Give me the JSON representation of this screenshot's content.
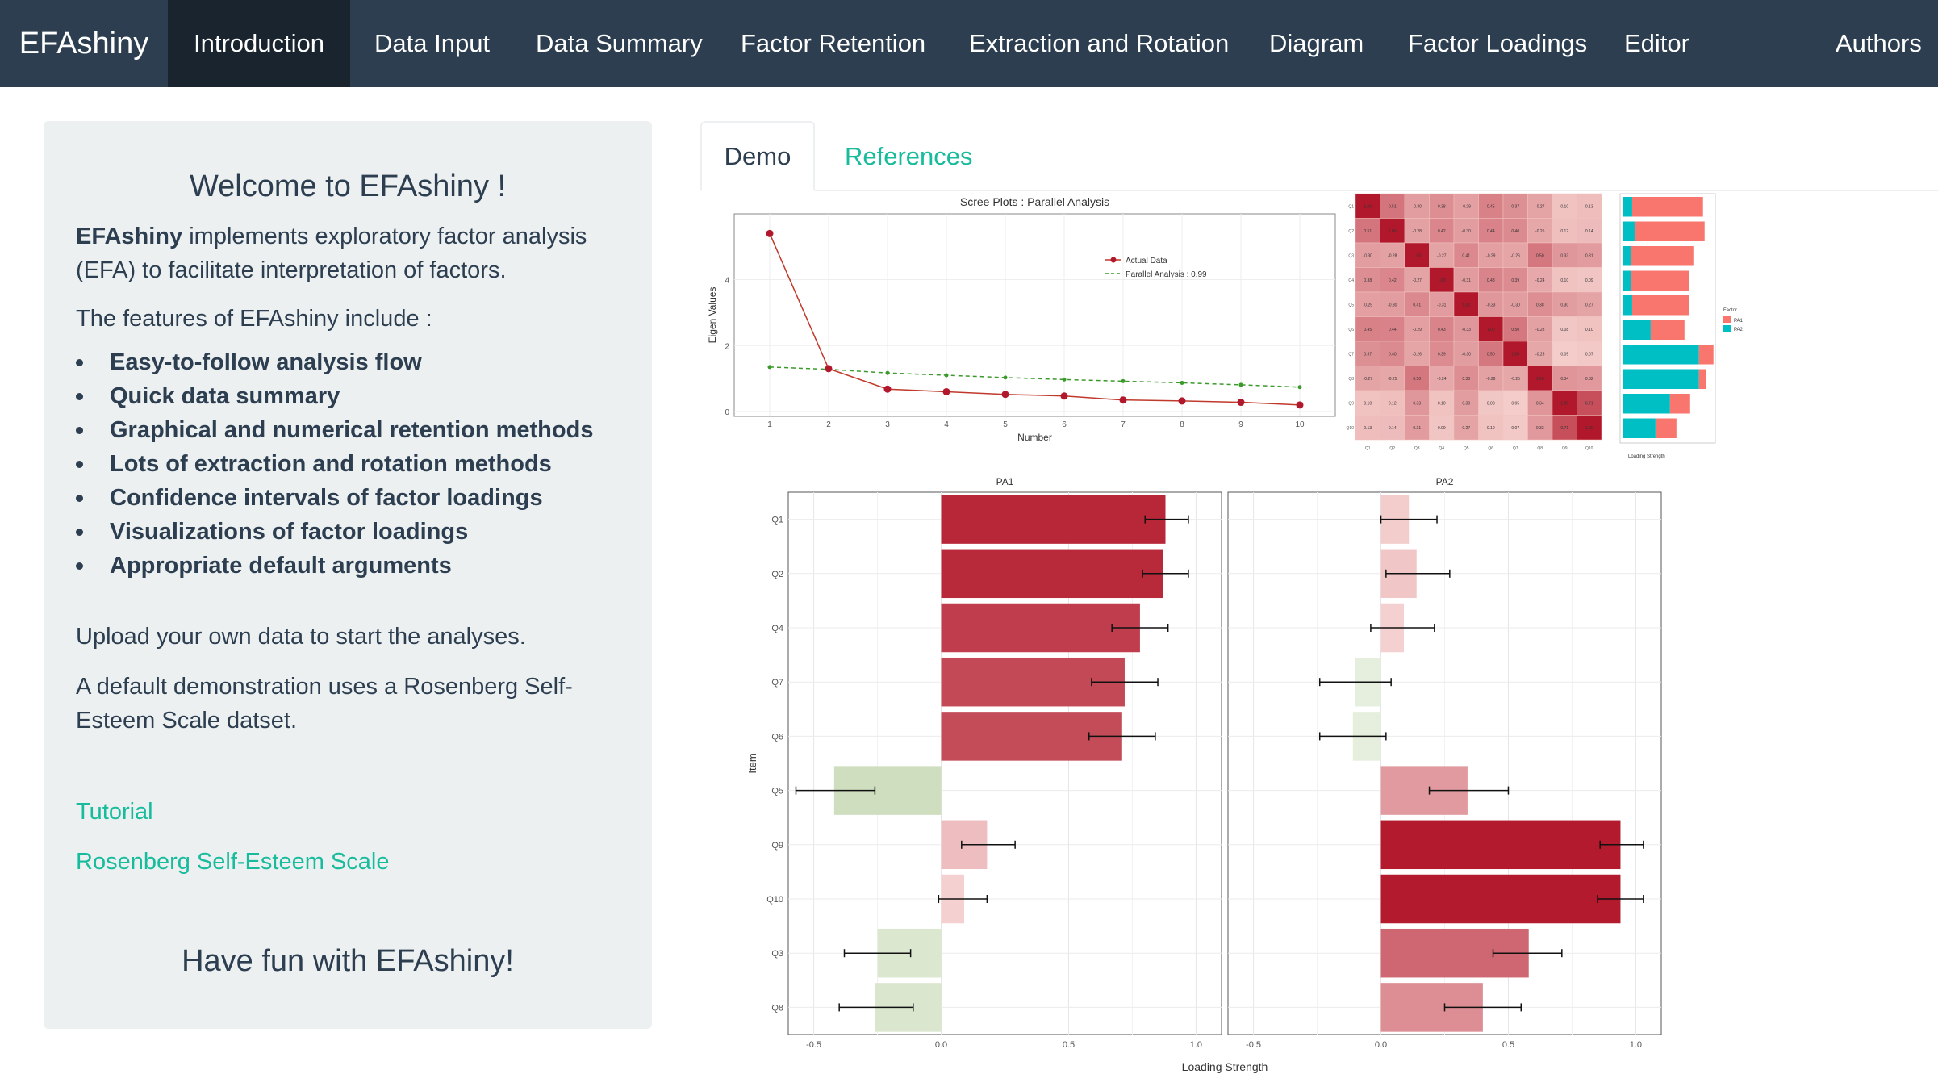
{
  "navbar": {
    "brand": "EFAshiny",
    "items": [
      "Introduction",
      "Data Input",
      "Data Summary",
      "Factor Retention",
      "Extraction and Rotation",
      "Diagram",
      "Factor Loadings",
      "Editor"
    ],
    "right_item": "Authors",
    "active": "Introduction"
  },
  "sidebar": {
    "title": "Welcome to EFAshiny !",
    "intro_bold": "EFAshiny",
    "intro_rest": " implements exploratory factor analysis (EFA) to facilitate interpretation of factors.",
    "features_lead": "The features of EFAshiny include :",
    "features": [
      "Easy-to-follow analysis flow",
      "Quick data summary",
      "Graphical and numerical retention methods",
      "Lots of extraction and rotation methods",
      "Confidence intervals of factor loadings",
      "Visualizations of factor loadings",
      "Appropriate default arguments"
    ],
    "upload_text": "Upload your own data to start the analyses.",
    "demo_text": "A default demonstration uses a Rosenberg Self-Esteem Scale datset.",
    "link_tutorial": "Tutorial",
    "link_rses": "Rosenberg Self-Esteem Scale",
    "closing": "Have fun with EFAshiny!"
  },
  "tabs": {
    "demo": "Demo",
    "references": "References"
  },
  "colors": {
    "navbar": "#2c3e50",
    "nav_active": "#1a242f",
    "accent": "#18bc9c",
    "sidebar": "#ecf0f1",
    "pos_bar": "#b2182b",
    "neg_bar": "#a6c48a",
    "pa1": "#f8766d",
    "pa2": "#00bfc4"
  },
  "chart_data": [
    {
      "type": "line",
      "title": "Scree Plots : Parallel Analysis",
      "xlabel": "Number",
      "ylabel": "Eigen Values",
      "x": [
        1,
        2,
        3,
        4,
        5,
        6,
        7,
        8,
        9,
        10
      ],
      "xticks": [
        "1",
        "2",
        "3",
        "4",
        "5",
        "6",
        "7",
        "8",
        "9",
        "10"
      ],
      "yticks": [
        "0",
        "2",
        "4"
      ],
      "ylim": [
        0,
        5.8
      ],
      "series": [
        {
          "name": "Actual Data",
          "values": [
            5.4,
            1.3,
            0.68,
            0.6,
            0.52,
            0.47,
            0.35,
            0.32,
            0.28,
            0.2
          ]
        },
        {
          "name": "Parallel Analysis : 0.99",
          "values": [
            1.35,
            1.28,
            1.17,
            1.1,
            1.03,
            0.97,
            0.92,
            0.87,
            0.81,
            0.74
          ]
        }
      ]
    },
    {
      "type": "heatmap",
      "title": "",
      "items": [
        "Q1",
        "Q2",
        "Q3",
        "Q4",
        "Q5",
        "Q6",
        "Q7",
        "Q8",
        "Q9",
        "Q10"
      ],
      "values": [
        [
          1,
          0.51,
          -0.3,
          0.38,
          -0.29,
          0.45,
          0.37,
          -0.27,
          0.1,
          0.13
        ],
        [
          0.51,
          1,
          -0.28,
          0.42,
          -0.3,
          0.44,
          0.4,
          -0.25,
          0.12,
          0.14
        ],
        [
          -0.3,
          -0.28,
          1,
          -0.27,
          0.41,
          -0.29,
          -0.26,
          0.5,
          0.33,
          0.31
        ],
        [
          0.38,
          0.42,
          -0.27,
          1,
          -0.31,
          0.43,
          0.39,
          -0.24,
          0.1,
          0.09
        ],
        [
          -0.29,
          -0.3,
          0.41,
          -0.31,
          1,
          -0.33,
          -0.3,
          0.38,
          0.3,
          0.27
        ],
        [
          0.45,
          0.44,
          -0.29,
          0.43,
          -0.33,
          1,
          0.5,
          -0.28,
          0.08,
          0.1
        ],
        [
          0.37,
          0.4,
          -0.26,
          0.39,
          -0.3,
          0.5,
          1,
          -0.25,
          0.05,
          0.07
        ],
        [
          -0.27,
          -0.25,
          0.5,
          -0.24,
          0.38,
          -0.28,
          -0.25,
          1,
          0.34,
          0.32
        ],
        [
          0.1,
          0.12,
          0.33,
          0.1,
          0.3,
          0.08,
          0.05,
          0.34,
          1,
          0.71
        ],
        [
          0.13,
          0.14,
          0.31,
          0.09,
          0.27,
          0.1,
          0.07,
          0.32,
          0.71,
          1
        ]
      ]
    },
    {
      "type": "bar",
      "title": "",
      "xlabel": "Loading Strength",
      "legend_title": "Factor",
      "categories": [
        "Q1",
        "Q2",
        "Q4",
        "Q7",
        "Q6",
        "Q5",
        "Q9",
        "Q10",
        "Q3",
        "Q8"
      ],
      "series": [
        {
          "name": "PA1",
          "values": [
            0.88,
            0.87,
            0.78,
            0.72,
            0.71,
            0.42,
            0.18,
            0.09,
            0.25,
            0.26
          ]
        },
        {
          "name": "PA2",
          "values": [
            0.11,
            0.14,
            0.09,
            0.1,
            0.11,
            0.34,
            0.94,
            0.94,
            0.58,
            0.4
          ]
        }
      ]
    },
    {
      "type": "bar",
      "orientation": "horizontal",
      "facets": [
        "PA1",
        "PA2"
      ],
      "ylabel": "Item",
      "xlabel": "Loading Strength",
      "xlim": [
        -0.6,
        1.1
      ],
      "xticks": [
        "-0.5",
        "0.0",
        "0.5",
        "1.0"
      ],
      "categories": [
        "Q1",
        "Q2",
        "Q4",
        "Q7",
        "Q6",
        "Q5",
        "Q9",
        "Q10",
        "Q3",
        "Q8"
      ],
      "series": [
        {
          "name": "PA1",
          "values": [
            0.88,
            0.87,
            0.78,
            0.72,
            0.71,
            -0.42,
            0.18,
            0.09,
            -0.25,
            -0.26
          ],
          "lower": [
            0.8,
            0.79,
            0.67,
            0.59,
            0.58,
            -0.57,
            0.08,
            -0.01,
            -0.38,
            -0.4
          ],
          "upper": [
            0.97,
            0.97,
            0.89,
            0.85,
            0.84,
            -0.26,
            0.29,
            0.18,
            -0.12,
            -0.11
          ]
        },
        {
          "name": "PA2",
          "values": [
            0.11,
            0.14,
            0.09,
            -0.1,
            -0.11,
            0.34,
            0.94,
            0.94,
            0.58,
            0.4
          ],
          "lower": [
            0.0,
            0.02,
            -0.04,
            -0.24,
            -0.24,
            0.19,
            0.86,
            0.85,
            0.44,
            0.25
          ],
          "upper": [
            0.22,
            0.27,
            0.21,
            0.04,
            0.02,
            0.5,
            1.03,
            1.03,
            0.71,
            0.55
          ]
        }
      ]
    }
  ]
}
